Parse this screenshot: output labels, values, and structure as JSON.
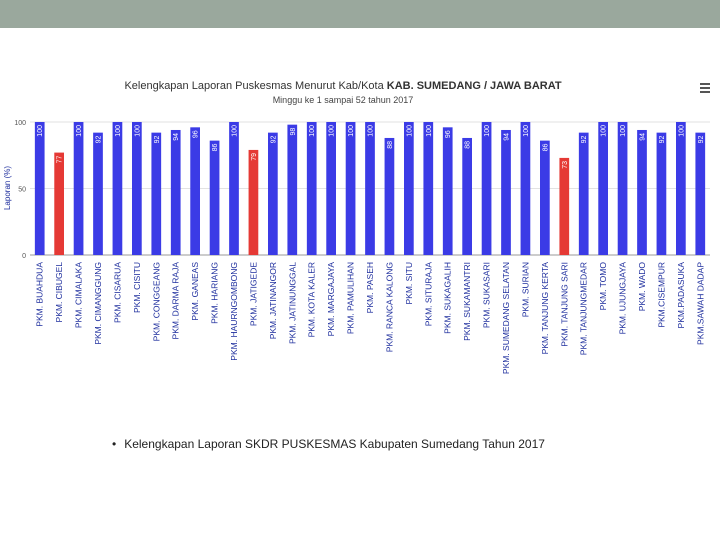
{
  "caption": {
    "bullet": "•",
    "text": "Kelengkapan Laporan SKDR PUSKESMAS Kabupaten Sumedang Tahun 2017"
  },
  "menu_icon": "hamburger-menu-icon",
  "colors": {
    "normal_bar": "#3b3be6",
    "low_bar": "#e53935",
    "bar_label": "#ffffff"
  },
  "chart_data": {
    "type": "bar",
    "title_prefix": "Kelengkapan Laporan Puskesmas Menurut Kab/Kota ",
    "title_bold": "KAB. SUMEDANG / JAWA BARAT",
    "subtitle": "Minggu ke 1 sampai 52 tahun 2017",
    "ylabel": "Laporan (%)",
    "ylim": [
      0,
      100
    ],
    "yticks": [
      0,
      50,
      100
    ],
    "categories": [
      "PKM. BUAHDUA",
      "PKM. CIBUGEL",
      "PKM. CIMALAKA",
      "PKM. CIMANGGUNG",
      "PKM. CISARUA",
      "PKM. CISITU",
      "PKM. CONGGEANG",
      "PKM. DARMA RAJA",
      "PKM. GANEAS",
      "PKM. HARIANG",
      "PKM. HAURNGOMBONG",
      "PKM. JATIGEDE",
      "PKM. JATINANGOR",
      "PKM. JATINUNGGAL",
      "PKM. KOTA KALER",
      "PKM. MARGAJAYA",
      "PKM. PAMULIHAN",
      "PKM. PASEH",
      "PKM. RANCA KALONG",
      "PKM. SITU",
      "PKM. SITURAJA",
      "PKM. SUKAGALIH",
      "PKM. SUKAMANTRI",
      "PKM. SUKASARI",
      "PKM. SUMEDANG SELATAN",
      "PKM. SURIAN",
      "PKM. TANJUNG KERTA",
      "PKM. TANJUNG SARI",
      "PKM. TANJUNGMEDAR",
      "PKM. TOMO",
      "PKM. UJUNGJAYA",
      "PKM. WADO",
      "PKM.CISEMPUR",
      "PKM.PADASUKA",
      "PKM.SAWAH DADAP"
    ],
    "values": [
      100,
      77,
      100,
      92,
      100,
      100,
      92,
      94,
      96,
      86,
      100,
      79,
      92,
      98,
      100,
      100,
      100,
      100,
      88,
      100,
      100,
      96,
      88,
      100,
      94,
      100,
      86,
      73,
      92,
      100,
      100,
      94,
      92,
      100,
      92
    ],
    "low_threshold": 80
  }
}
